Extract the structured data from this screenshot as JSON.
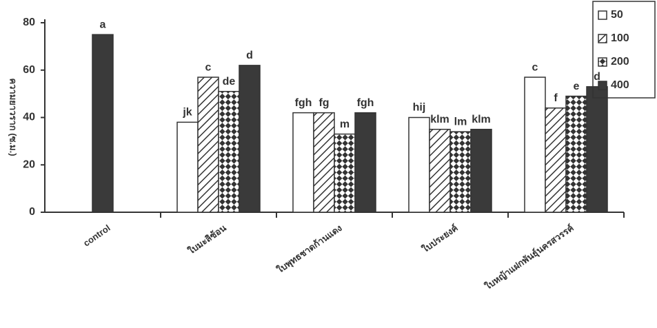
{
  "chart_data": {
    "type": "bar",
    "y_label": "ความยาวราก (ซ.ม.)",
    "categories": [
      "control",
      "ใบมะลิซ้อน",
      "ใบพุทธชาดก้านแดง",
      "ใบประยงค์",
      "ใบหญ้าแฝกพันธุ์นครสวรรค์"
    ],
    "series": [
      {
        "name": "50",
        "color": "#ffffff",
        "values": [
          null,
          38,
          42,
          40,
          57
        ],
        "letters": [
          null,
          "jk",
          "fgh",
          "hij",
          "c"
        ]
      },
      {
        "name": "100",
        "color": "#bbbbbb",
        "values": [
          null,
          57,
          42,
          35,
          44
        ],
        "letters": [
          null,
          "c",
          "fg",
          "klm",
          "f"
        ]
      },
      {
        "name": "200",
        "color": "#666666",
        "values": [
          null,
          51,
          33,
          34,
          49
        ],
        "letters": [
          null,
          "de",
          "m",
          "lm",
          "e"
        ]
      },
      {
        "name": "400",
        "color": "#3a3a3a",
        "values": [
          75,
          62,
          42,
          35,
          53
        ],
        "letters": [
          "a",
          "d",
          "fgh",
          "klm",
          "d"
        ]
      }
    ],
    "ylim": [
      0,
      80
    ],
    "yticks": [
      0,
      20,
      40,
      60,
      80
    ],
    "legend": "top-right"
  }
}
